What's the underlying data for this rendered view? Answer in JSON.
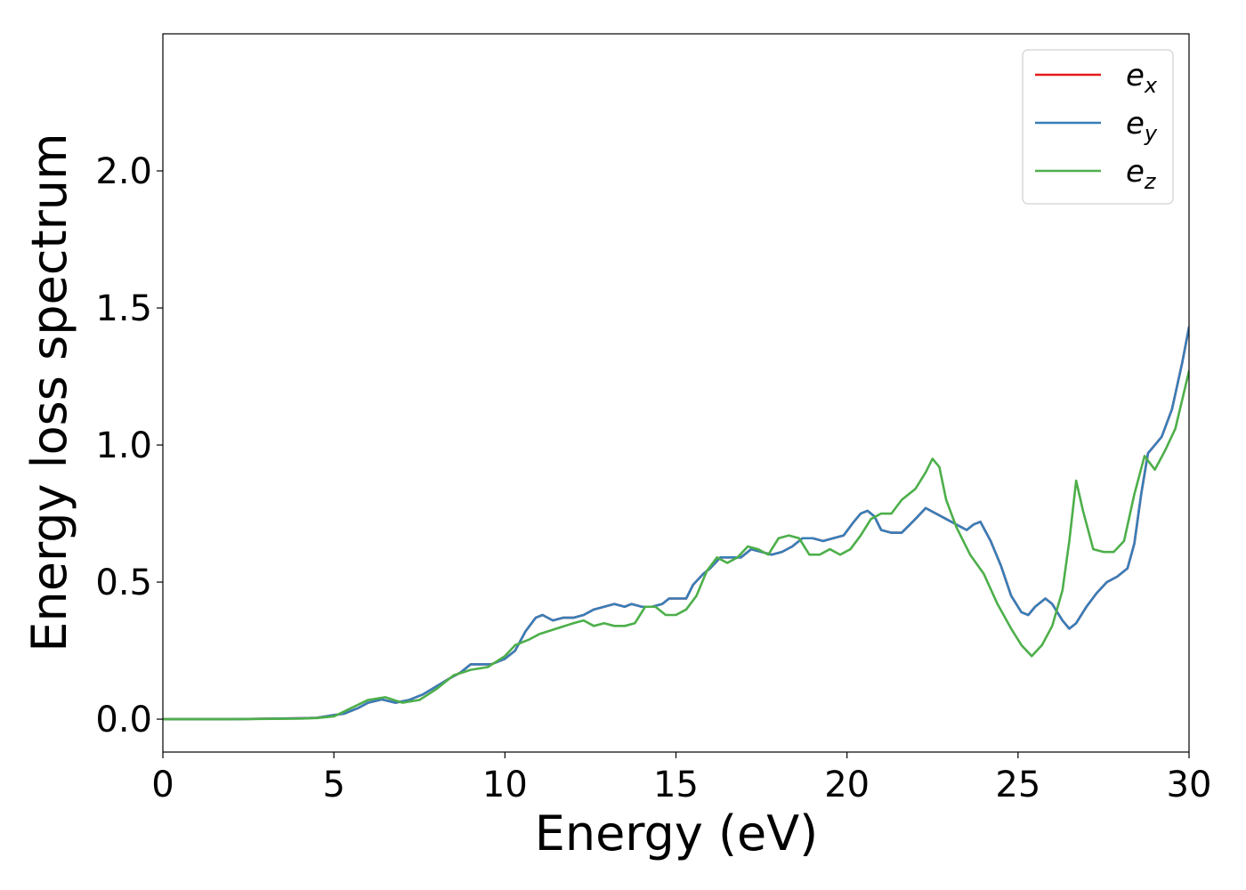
{
  "chart_data": {
    "type": "line",
    "title": "",
    "xlabel": "Energy (eV)",
    "ylabel": "Energy loss spectrum",
    "xlim": [
      0,
      30
    ],
    "ylim": [
      -0.12,
      2.5
    ],
    "xticks": [
      0,
      5,
      10,
      15,
      20,
      25,
      30
    ],
    "xtick_labels": [
      "0",
      "5",
      "10",
      "15",
      "20",
      "25",
      "30"
    ],
    "yticks": [
      0.0,
      0.5,
      1.0,
      1.5,
      2.0
    ],
    "ytick_labels": [
      "0.0",
      "0.5",
      "1.0",
      "1.5",
      "2.0"
    ],
    "grid": false,
    "legend_position": "top-right",
    "series": [
      {
        "name": "e_x",
        "label_main": "e",
        "label_sub": "x",
        "color": "#e41a1c",
        "x": [
          0,
          2,
          4,
          4.5,
          5,
          5.3,
          5.7,
          6.0,
          6.4,
          6.8,
          7.2,
          7.6,
          8.0,
          8.4,
          8.7,
          9.0,
          9.3,
          9.6,
          10.0,
          10.3,
          10.6,
          10.9,
          11.1,
          11.4,
          11.7,
          12.0,
          12.3,
          12.6,
          12.9,
          13.2,
          13.5,
          13.7,
          14.0,
          14.3,
          14.6,
          14.8,
          15.1,
          15.3,
          15.5,
          15.8,
          16.0,
          16.3,
          16.6,
          16.9,
          17.2,
          17.5,
          17.8,
          18.1,
          18.4,
          18.7,
          19.0,
          19.3,
          19.6,
          19.9,
          20.2,
          20.4,
          20.6,
          20.8,
          21.0,
          21.3,
          21.6,
          22.0,
          22.3,
          22.6,
          22.9,
          23.2,
          23.5,
          23.7,
          23.9,
          24.2,
          24.5,
          24.8,
          25.1,
          25.3,
          25.5,
          25.8,
          26.0,
          26.3,
          26.5,
          26.7,
          27.0,
          27.3,
          27.6,
          27.9,
          28.2,
          28.4,
          28.6,
          28.8,
          29.0,
          29.2,
          29.5,
          29.8,
          30.0
        ],
        "y": [
          0.0,
          0.0,
          0.003,
          0.005,
          0.015,
          0.02,
          0.04,
          0.06,
          0.072,
          0.06,
          0.07,
          0.09,
          0.12,
          0.15,
          0.17,
          0.2,
          0.2,
          0.2,
          0.22,
          0.25,
          0.32,
          0.37,
          0.38,
          0.36,
          0.37,
          0.37,
          0.38,
          0.4,
          0.41,
          0.42,
          0.41,
          0.42,
          0.41,
          0.41,
          0.42,
          0.44,
          0.44,
          0.44,
          0.49,
          0.53,
          0.55,
          0.59,
          0.59,
          0.59,
          0.62,
          0.61,
          0.6,
          0.61,
          0.63,
          0.66,
          0.66,
          0.65,
          0.66,
          0.67,
          0.72,
          0.75,
          0.76,
          0.74,
          0.69,
          0.68,
          0.68,
          0.73,
          0.77,
          0.75,
          0.73,
          0.71,
          0.69,
          0.71,
          0.72,
          0.65,
          0.56,
          0.45,
          0.39,
          0.38,
          0.41,
          0.44,
          0.42,
          0.36,
          0.33,
          0.35,
          0.41,
          0.46,
          0.5,
          0.52,
          0.55,
          0.64,
          0.82,
          0.97,
          1.0,
          1.03,
          1.13,
          1.3,
          1.43
        ]
      },
      {
        "name": "e_y",
        "label_main": "e",
        "label_sub": "y",
        "color": "#377eb8",
        "x": [
          0,
          2,
          4,
          4.5,
          5,
          5.3,
          5.7,
          6.0,
          6.4,
          6.8,
          7.2,
          7.6,
          8.0,
          8.4,
          8.7,
          9.0,
          9.3,
          9.6,
          10.0,
          10.3,
          10.6,
          10.9,
          11.1,
          11.4,
          11.7,
          12.0,
          12.3,
          12.6,
          12.9,
          13.2,
          13.5,
          13.7,
          14.0,
          14.3,
          14.6,
          14.8,
          15.1,
          15.3,
          15.5,
          15.8,
          16.0,
          16.3,
          16.6,
          16.9,
          17.2,
          17.5,
          17.8,
          18.1,
          18.4,
          18.7,
          19.0,
          19.3,
          19.6,
          19.9,
          20.2,
          20.4,
          20.6,
          20.8,
          21.0,
          21.3,
          21.6,
          22.0,
          22.3,
          22.6,
          22.9,
          23.2,
          23.5,
          23.7,
          23.9,
          24.2,
          24.5,
          24.8,
          25.1,
          25.3,
          25.5,
          25.8,
          26.0,
          26.3,
          26.5,
          26.7,
          27.0,
          27.3,
          27.6,
          27.9,
          28.2,
          28.4,
          28.6,
          28.8,
          29.0,
          29.2,
          29.5,
          29.8,
          30.0
        ],
        "y": [
          0.0,
          0.0,
          0.003,
          0.005,
          0.015,
          0.02,
          0.04,
          0.06,
          0.072,
          0.06,
          0.07,
          0.09,
          0.12,
          0.15,
          0.17,
          0.2,
          0.2,
          0.2,
          0.22,
          0.25,
          0.32,
          0.37,
          0.38,
          0.36,
          0.37,
          0.37,
          0.38,
          0.4,
          0.41,
          0.42,
          0.41,
          0.42,
          0.41,
          0.41,
          0.42,
          0.44,
          0.44,
          0.44,
          0.49,
          0.53,
          0.55,
          0.59,
          0.59,
          0.59,
          0.62,
          0.61,
          0.6,
          0.61,
          0.63,
          0.66,
          0.66,
          0.65,
          0.66,
          0.67,
          0.72,
          0.75,
          0.76,
          0.74,
          0.69,
          0.68,
          0.68,
          0.73,
          0.77,
          0.75,
          0.73,
          0.71,
          0.69,
          0.71,
          0.72,
          0.65,
          0.56,
          0.45,
          0.39,
          0.38,
          0.41,
          0.44,
          0.42,
          0.36,
          0.33,
          0.35,
          0.41,
          0.46,
          0.5,
          0.52,
          0.55,
          0.64,
          0.82,
          0.97,
          1.0,
          1.03,
          1.13,
          1.3,
          1.43
        ]
      },
      {
        "name": "e_z",
        "label_main": "e",
        "label_sub": "z",
        "color": "#4daf4a",
        "x": [
          0,
          2,
          4,
          4.5,
          5,
          5.5,
          6.0,
          6.5,
          7.0,
          7.5,
          8.0,
          8.5,
          9.0,
          9.5,
          10.0,
          10.3,
          10.7,
          11.0,
          11.5,
          12.0,
          12.3,
          12.6,
          12.9,
          13.2,
          13.5,
          13.8,
          14.1,
          14.4,
          14.7,
          15.0,
          15.3,
          15.6,
          15.9,
          16.2,
          16.5,
          16.8,
          17.1,
          17.4,
          17.7,
          18.0,
          18.3,
          18.6,
          18.9,
          19.2,
          19.5,
          19.8,
          20.1,
          20.4,
          20.7,
          21.0,
          21.3,
          21.6,
          22.0,
          22.3,
          22.5,
          22.7,
          22.9,
          23.2,
          23.6,
          24.0,
          24.4,
          24.8,
          25.1,
          25.4,
          25.7,
          26.0,
          26.3,
          26.5,
          26.7,
          26.9,
          27.2,
          27.5,
          27.8,
          28.1,
          28.4,
          28.7,
          29.0,
          29.3,
          29.6,
          30.0
        ],
        "y": [
          0.0,
          0.0,
          0.002,
          0.004,
          0.01,
          0.04,
          0.07,
          0.08,
          0.06,
          0.07,
          0.11,
          0.16,
          0.18,
          0.19,
          0.23,
          0.27,
          0.29,
          0.31,
          0.33,
          0.35,
          0.36,
          0.34,
          0.35,
          0.34,
          0.34,
          0.35,
          0.41,
          0.41,
          0.38,
          0.38,
          0.4,
          0.45,
          0.54,
          0.59,
          0.57,
          0.59,
          0.63,
          0.62,
          0.6,
          0.66,
          0.67,
          0.66,
          0.6,
          0.6,
          0.62,
          0.6,
          0.62,
          0.67,
          0.73,
          0.75,
          0.75,
          0.8,
          0.84,
          0.9,
          0.95,
          0.92,
          0.8,
          0.7,
          0.6,
          0.53,
          0.42,
          0.33,
          0.27,
          0.23,
          0.27,
          0.34,
          0.47,
          0.65,
          0.87,
          0.76,
          0.62,
          0.61,
          0.61,
          0.65,
          0.82,
          0.96,
          0.91,
          0.98,
          1.06,
          1.27
        ]
      }
    ]
  }
}
